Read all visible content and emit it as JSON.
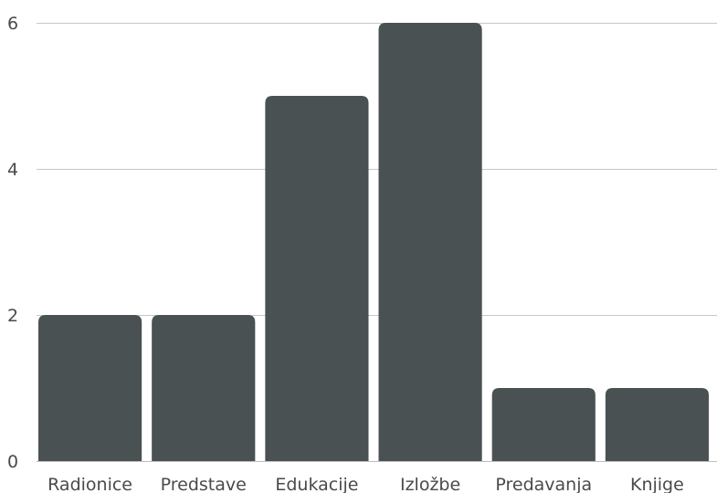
{
  "chart_data": {
    "type": "bar",
    "title": "",
    "xlabel": "",
    "ylabel": "",
    "categories": [
      "Radionice",
      "Predstave",
      "Edukacije",
      "Izložbe",
      "Predavanja",
      "Knjige"
    ],
    "values": [
      2,
      2,
      5,
      6,
      1,
      1
    ],
    "ylim": [
      0,
      6
    ],
    "yticks": [
      "0",
      "2",
      "4",
      "6"
    ],
    "grid": true,
    "legend": "none",
    "colors": {
      "bar": "#4a5152",
      "grid": "#c8c8c8",
      "text": "#4a4a4a"
    }
  }
}
